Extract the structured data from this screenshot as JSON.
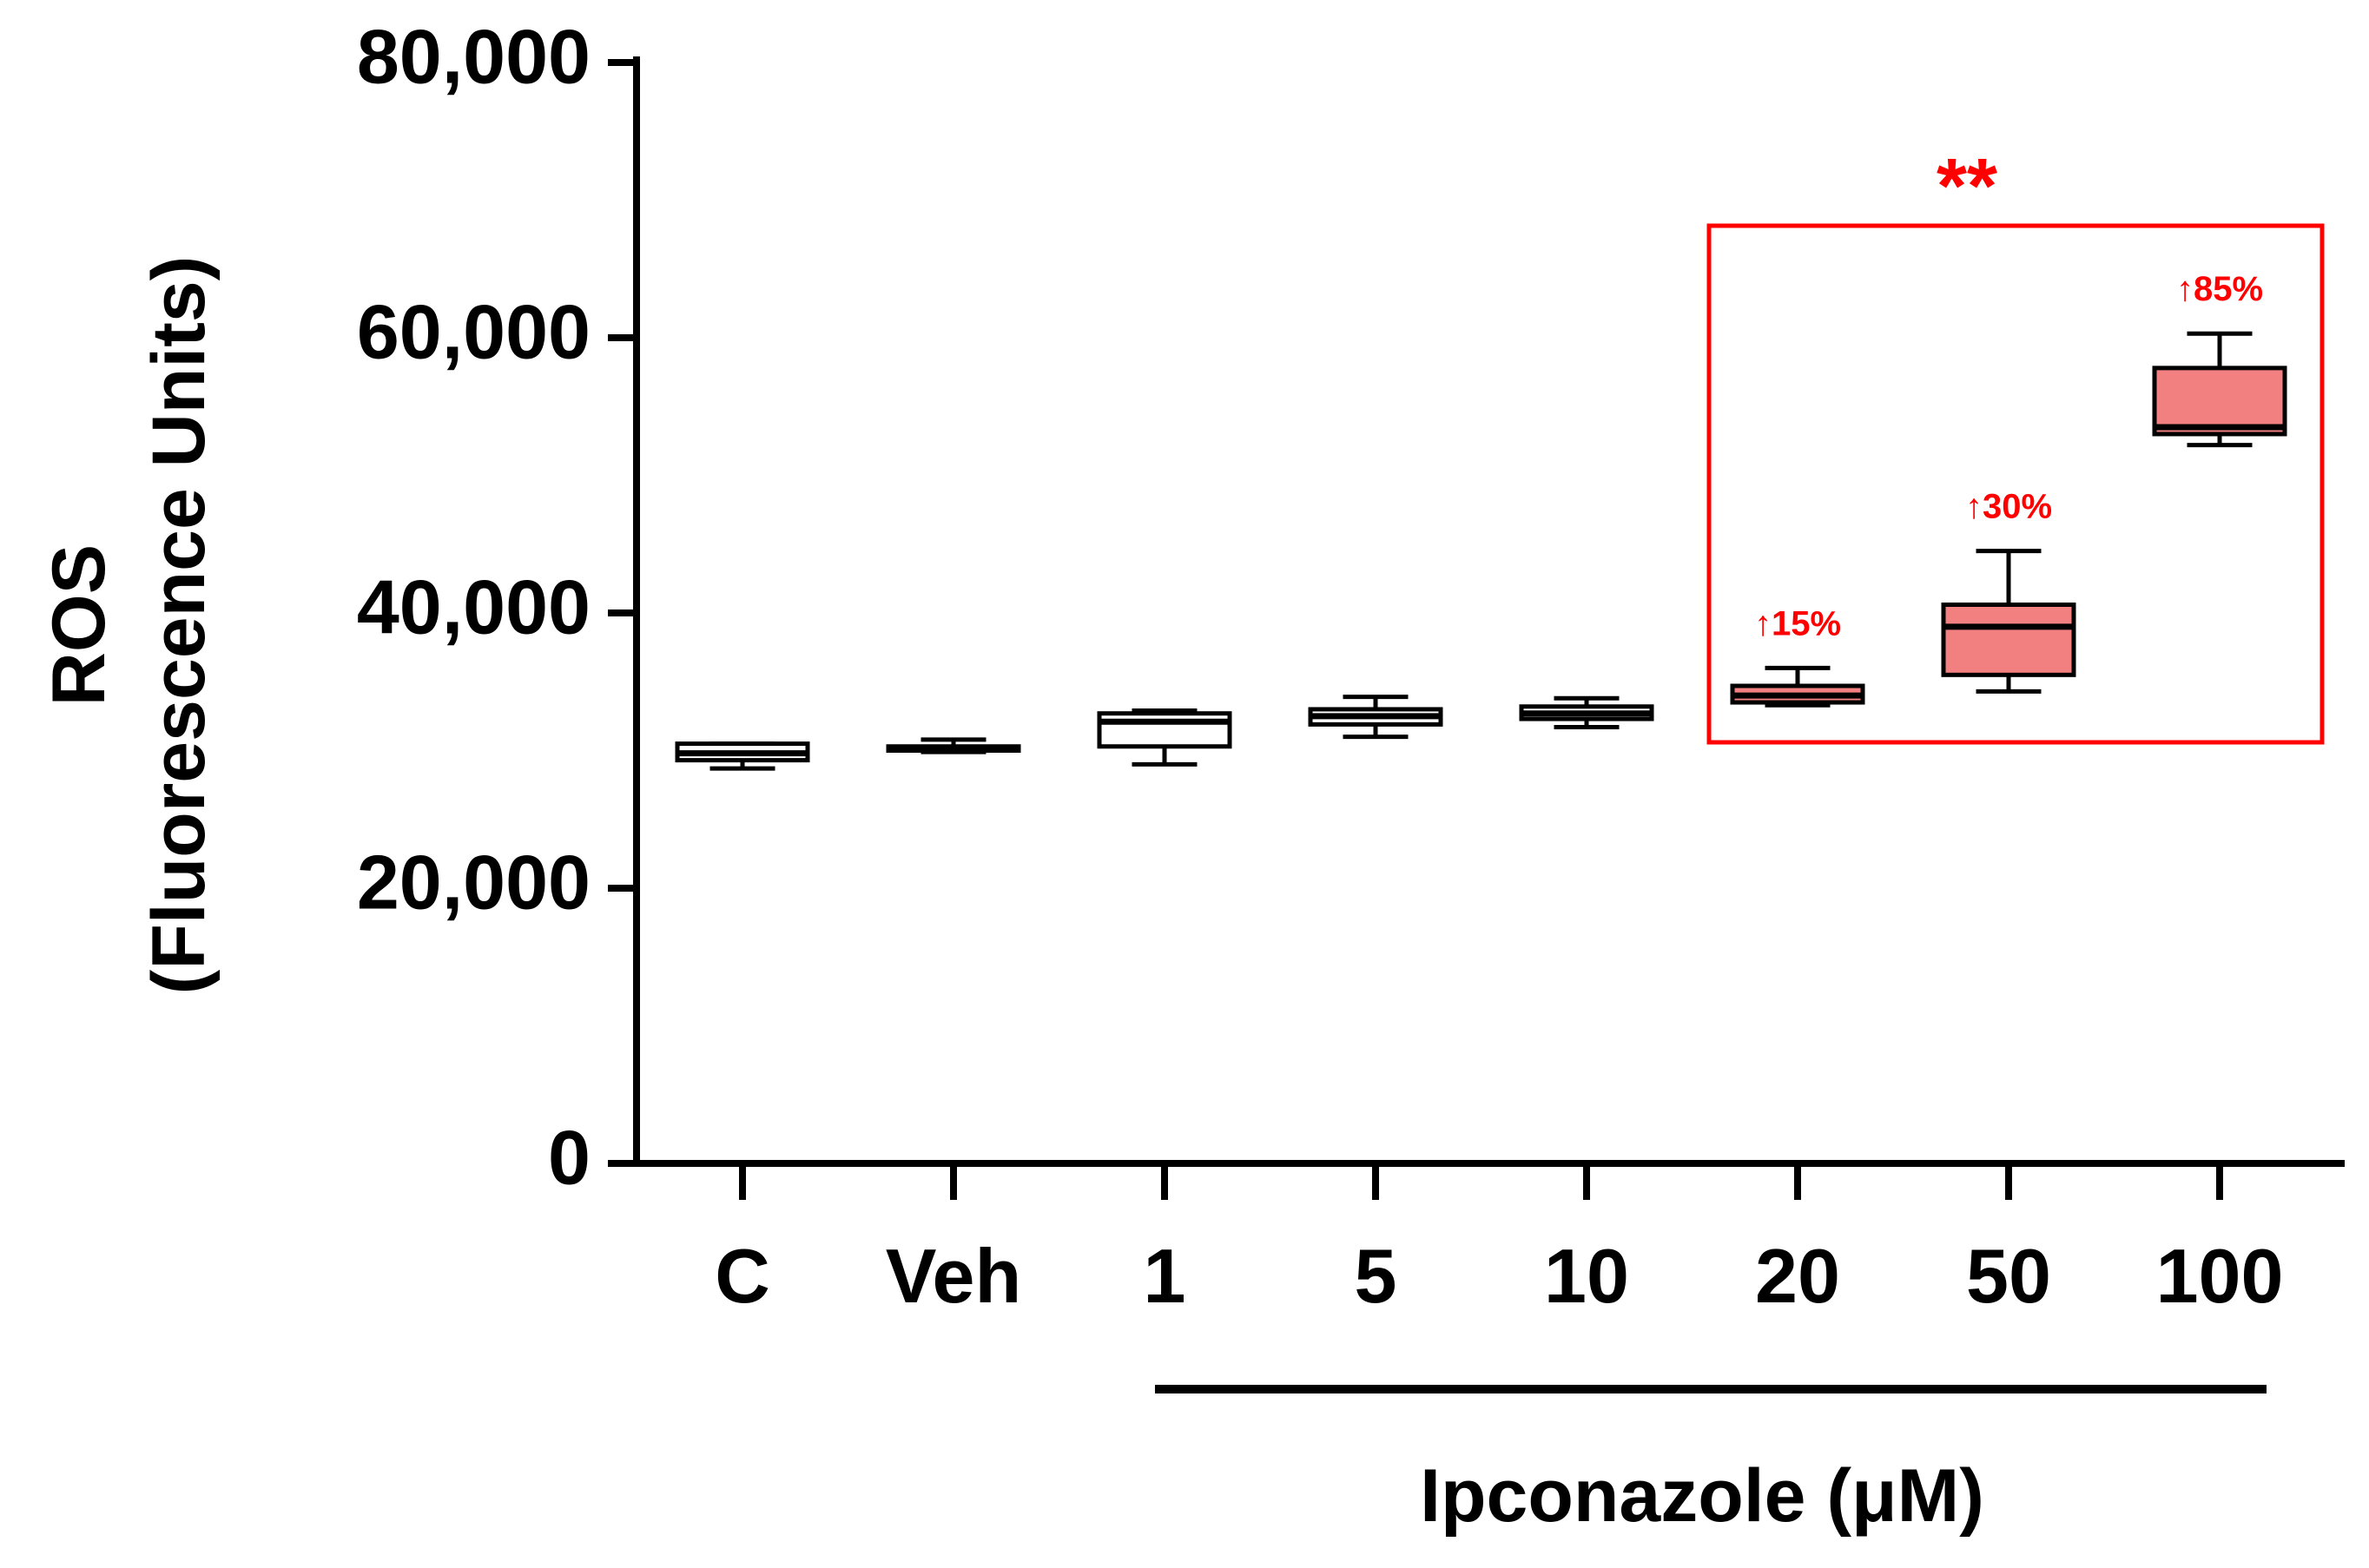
{
  "chart_data": {
    "type": "box",
    "ylabel_line1": "ROS",
    "ylabel_line2": "(Fluorescence Units)",
    "xlabel": "Ipconazole (μM)",
    "ylim": [
      0,
      80000
    ],
    "yticks": [
      0,
      20000,
      40000,
      60000,
      80000
    ],
    "ytick_labels": [
      "0",
      "20,000",
      "40,000",
      "60,000",
      "80,000"
    ],
    "grid": false,
    "categories": [
      "C",
      "Veh",
      "1",
      "5",
      "10",
      "20",
      "50",
      "100"
    ],
    "boxes": [
      {
        "category": "C",
        "min": 28700,
        "q1": 29300,
        "median": 29800,
        "q3": 30500,
        "max": 30500,
        "highlight": false
      },
      {
        "category": "Veh",
        "min": 29900,
        "q1": 30000,
        "median": 30100,
        "q3": 30300,
        "max": 30800,
        "highlight": false
      },
      {
        "category": "1",
        "min": 29000,
        "q1": 30300,
        "median": 32100,
        "q3": 32700,
        "max": 32900,
        "highlight": false
      },
      {
        "category": "5",
        "min": 31000,
        "q1": 31900,
        "median": 32500,
        "q3": 33000,
        "max": 33900,
        "highlight": false
      },
      {
        "category": "10",
        "min": 31700,
        "q1": 32300,
        "median": 32700,
        "q3": 33200,
        "max": 33800,
        "highlight": false
      },
      {
        "category": "20",
        "min": 33300,
        "q1": 33500,
        "median": 34000,
        "q3": 34700,
        "max": 36000,
        "highlight": true
      },
      {
        "category": "50",
        "min": 34300,
        "q1": 35500,
        "median": 39000,
        "q3": 40600,
        "max": 44500,
        "highlight": true
      },
      {
        "category": "100",
        "min": 52200,
        "q1": 53000,
        "median": 53500,
        "q3": 57800,
        "max": 60300,
        "highlight": true
      }
    ],
    "annotations": [
      {
        "category": "20",
        "text": "↑15%"
      },
      {
        "category": "50",
        "text": "↑30%"
      },
      {
        "category": "100",
        "text": "↑85%"
      }
    ],
    "significance": "**",
    "treatment_group_categories": [
      "1",
      "100"
    ],
    "colors": {
      "highlight_fill": "#f28080",
      "annotation": "#ff0000",
      "axis": "#000000"
    }
  }
}
